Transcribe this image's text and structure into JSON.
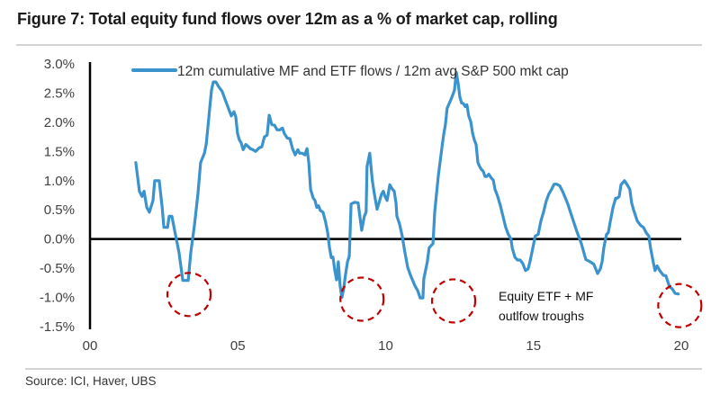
{
  "header": {
    "title": "Figure 7: Total equity fund flows over 12m as a % of market cap, rolling"
  },
  "footer": {
    "source": "Source: ICI, Haver, UBS"
  },
  "chart_data": {
    "type": "line",
    "title": "Figure 7: Total equity fund flows over 12m as a % of market cap, rolling",
    "xlabel": "",
    "ylabel": "",
    "xlim": [
      0,
      20
    ],
    "ylim": [
      -1.5,
      3.0
    ],
    "x_ticks": [
      0,
      5,
      10,
      15,
      20
    ],
    "x_tick_labels": [
      "00",
      "05",
      "10",
      "15",
      "20"
    ],
    "y_ticks": [
      3.0,
      2.5,
      2.0,
      1.5,
      1.0,
      0.5,
      0.0,
      -0.5,
      -1.0,
      -1.5
    ],
    "y_tick_labels": [
      "3.0%",
      "2.5%",
      "2.0%",
      "1.5%",
      "1.0%",
      "0.5%",
      "0.0%",
      "-0.5%",
      "-1.0%",
      "-1.5%"
    ],
    "grid": false,
    "legend": {
      "position": "top",
      "entries": [
        "12m cumulative MF and ETF flows  / 12m avg S&P 500 mkt cap"
      ]
    },
    "colors": {
      "series": "#3a93cc",
      "annotation_circle": "#c00000",
      "axis": "#000000"
    },
    "series": [
      {
        "name": "12m cumulative MF and ETF flows  / 12m avg S&P 500 mkt cap",
        "x": [
          1.55,
          1.67,
          1.76,
          1.83,
          1.92,
          2.01,
          2.13,
          2.19,
          2.34,
          2.44,
          2.5,
          2.62,
          2.68,
          2.77,
          2.89,
          3.01,
          3.14,
          3.32,
          3.41,
          3.53,
          3.65,
          3.74,
          3.87,
          3.93,
          3.99,
          4.05,
          4.11,
          4.17,
          4.26,
          4.35,
          4.47,
          4.57,
          4.66,
          4.78,
          4.87,
          4.93,
          4.99,
          5.05,
          5.11,
          5.18,
          5.27,
          5.36,
          5.42,
          5.51,
          5.6,
          5.72,
          5.81,
          5.9,
          5.99,
          6.06,
          6.15,
          6.24,
          6.33,
          6.42,
          6.51,
          6.57,
          6.67,
          6.76,
          6.85,
          6.94,
          7.03,
          7.09,
          7.18,
          7.27,
          7.34,
          7.4,
          7.46,
          7.55,
          7.61,
          7.67,
          7.73,
          7.79,
          7.88,
          7.97,
          8.04,
          8.1,
          8.16,
          8.22,
          8.28,
          8.34,
          8.4,
          8.46,
          8.52,
          8.58,
          8.64,
          8.71,
          8.77,
          8.83,
          8.95,
          9.07,
          9.19,
          9.28,
          9.34,
          9.37,
          9.46,
          9.55,
          9.62,
          9.71,
          9.8,
          9.86,
          9.92,
          9.98,
          10.05,
          10.14,
          10.23,
          10.29,
          10.35,
          10.38,
          10.47,
          10.56,
          10.65,
          10.75,
          10.84,
          10.93,
          10.99,
          11.08,
          11.17,
          11.26,
          11.29,
          11.35,
          11.41,
          11.47,
          11.54,
          11.6,
          11.66,
          11.72,
          11.78,
          11.84,
          11.9,
          11.96,
          12.02,
          12.08,
          12.15,
          12.24,
          12.33,
          12.39,
          12.45,
          12.51,
          12.57,
          12.63,
          12.69,
          12.75,
          12.81,
          12.88,
          12.94,
          13.0,
          13.06,
          13.12,
          13.18,
          13.24,
          13.3,
          13.36,
          13.42,
          13.49,
          13.58,
          13.64,
          13.7,
          13.79,
          13.88,
          13.97,
          14.06,
          14.15,
          14.24,
          14.28,
          14.37,
          14.46,
          14.55,
          14.64,
          14.73,
          14.82,
          14.88,
          14.97,
          15.06,
          15.16,
          15.25,
          15.34,
          15.43,
          15.52,
          15.61,
          15.7,
          15.79,
          15.89,
          16.0,
          16.16,
          16.31,
          16.46,
          16.62,
          16.77,
          16.92,
          17.04,
          17.17,
          17.26,
          17.32,
          17.38,
          17.47,
          17.53,
          17.6,
          17.69,
          17.78,
          17.84,
          17.9,
          17.96,
          18.08,
          18.17,
          18.26,
          18.32,
          18.38,
          18.51,
          18.63,
          18.72,
          18.81,
          18.9,
          18.96,
          19.05,
          19.11,
          19.18,
          19.27,
          19.39,
          19.48,
          19.6,
          19.69,
          19.79,
          19.9
        ],
        "y": [
          1.31,
          0.82,
          0.73,
          0.82,
          0.54,
          0.46,
          0.66,
          1.0,
          1.0,
          0.54,
          0.2,
          0.2,
          0.39,
          0.39,
          0.08,
          -0.23,
          -0.71,
          -0.71,
          -0.23,
          0.23,
          0.77,
          1.31,
          1.47,
          1.62,
          1.93,
          2.24,
          2.55,
          2.69,
          2.69,
          2.61,
          2.53,
          2.39,
          2.27,
          2.11,
          2.18,
          2.09,
          1.81,
          1.7,
          1.65,
          1.53,
          1.62,
          1.58,
          1.55,
          1.53,
          1.5,
          1.56,
          1.58,
          1.75,
          1.78,
          2.12,
          1.96,
          1.95,
          1.87,
          1.87,
          1.9,
          1.81,
          1.73,
          1.72,
          1.55,
          1.44,
          1.53,
          1.47,
          1.47,
          1.44,
          1.55,
          1.31,
          0.85,
          0.7,
          0.66,
          0.54,
          0.57,
          0.49,
          0.46,
          0.29,
          0.11,
          -0.15,
          -0.32,
          -0.31,
          -0.54,
          -0.7,
          -0.39,
          -0.8,
          -1.0,
          -0.85,
          -0.62,
          -0.39,
          -0.29,
          0.6,
          0.63,
          0.62,
          0.15,
          0.39,
          0.46,
          1.24,
          1.47,
          1.0,
          0.77,
          0.51,
          0.66,
          0.77,
          0.82,
          0.73,
          0.66,
          0.93,
          0.85,
          0.82,
          0.62,
          0.39,
          0.26,
          0.05,
          -0.23,
          -0.49,
          -0.62,
          -0.73,
          -0.8,
          -0.88,
          -1.01,
          -1.01,
          -0.68,
          -0.54,
          -0.39,
          -0.15,
          -0.11,
          -0.08,
          0.46,
          0.77,
          1.08,
          1.31,
          1.55,
          1.78,
          1.96,
          2.24,
          2.32,
          2.43,
          2.55,
          2.86,
          2.67,
          2.43,
          2.33,
          2.32,
          2.27,
          2.3,
          2.11,
          2.01,
          1.81,
          1.7,
          1.62,
          1.31,
          1.24,
          1.19,
          1.16,
          1.07,
          1.07,
          1.11,
          1.04,
          1.01,
          0.85,
          0.73,
          0.57,
          0.39,
          0.2,
          0.08,
          0.0,
          -0.15,
          -0.31,
          -0.36,
          -0.36,
          -0.42,
          -0.54,
          -0.51,
          -0.39,
          -0.17,
          0.05,
          0.08,
          0.31,
          0.46,
          0.65,
          0.77,
          0.85,
          0.94,
          0.94,
          0.91,
          0.8,
          0.6,
          0.37,
          0.14,
          -0.08,
          -0.35,
          -0.39,
          -0.43,
          -0.59,
          -0.51,
          -0.39,
          -0.15,
          0.08,
          0.11,
          0.31,
          0.54,
          0.7,
          0.7,
          0.73,
          0.93,
          1.0,
          0.93,
          0.85,
          0.62,
          0.51,
          0.31,
          0.23,
          0.2,
          0.11,
          0.05,
          -0.15,
          -0.39,
          -0.54,
          -0.46,
          -0.54,
          -0.62,
          -0.63,
          -0.82,
          -0.85,
          -0.93,
          -0.94
        ]
      }
    ],
    "annotations": [
      {
        "type": "dashed-circle",
        "center": [
          3.35,
          -0.95
        ],
        "label": "trough-2003"
      },
      {
        "type": "dashed-circle",
        "center": [
          9.2,
          -1.03
        ],
        "label": "trough-2009"
      },
      {
        "type": "dashed-circle",
        "center": [
          12.3,
          -1.06
        ],
        "label": "trough-2012"
      },
      {
        "type": "dashed-circle",
        "center": [
          19.95,
          -1.14
        ],
        "label": "trough-2019"
      },
      {
        "type": "text",
        "lines": [
          "Equity ETF + MF",
          "outlfow troughs"
        ],
        "at": [
          14.2,
          -0.98
        ]
      }
    ]
  }
}
